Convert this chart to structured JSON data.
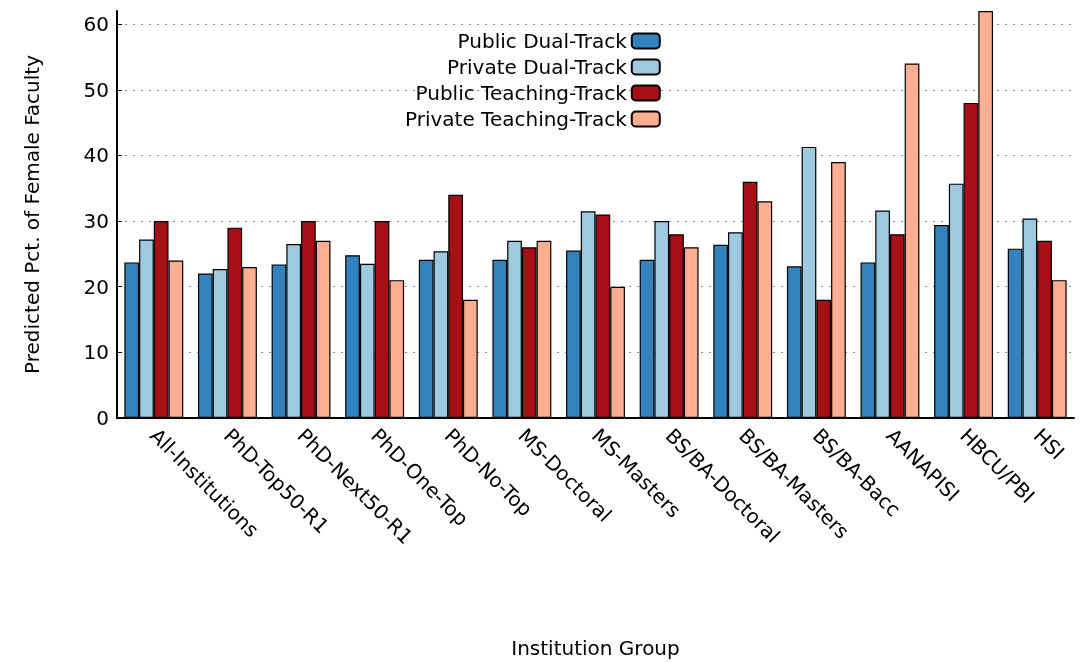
{
  "chart_data": {
    "type": "bar",
    "xlabel": "Institution Group",
    "ylabel": "Predicted Pct. of Female Faculty",
    "categories": [
      "All-Institutions",
      "PhD-Top50-R1",
      "PhD-Next50-R1",
      "PhD-One-Top",
      "PhD-No-Top",
      "MS-Doctoral",
      "MS-Masters",
      "BS/BA-Doctoral",
      "BS/BA-Masters",
      "BS/BA-Bacc",
      "AANAPISI",
      "HBCU/PBI",
      "HSI"
    ],
    "series": [
      {
        "name": "Public Dual-Track",
        "color": "#3182bd",
        "values": [
          23.7,
          22,
          23.4,
          24.8,
          24.1,
          24.1,
          25.5,
          24.1,
          26.4,
          23.1,
          23.7,
          29.4,
          25.8
        ]
      },
      {
        "name": "Private Dual-Track",
        "color": "#9ecae1",
        "values": [
          27.2,
          22.7,
          26.5,
          23.5,
          25.4,
          27,
          31.5,
          30,
          28.3,
          41.3,
          31.6,
          35.7,
          30.4
        ]
      },
      {
        "name": "Public Teaching-Track",
        "color": "#a50f15",
        "values": [
          30,
          29,
          30,
          30,
          34,
          26,
          31,
          28,
          36,
          18,
          28,
          48,
          27
        ]
      },
      {
        "name": "Private Teaching-Track",
        "color": "#fcae91",
        "values": [
          24,
          23,
          27,
          21,
          18,
          27,
          20,
          26,
          33,
          39,
          54,
          62,
          21
        ]
      }
    ],
    "ylim": [
      0,
      62
    ],
    "yticks": [
      0,
      10,
      20,
      30,
      40,
      50,
      60
    ],
    "grid": "y",
    "legend": "top"
  }
}
